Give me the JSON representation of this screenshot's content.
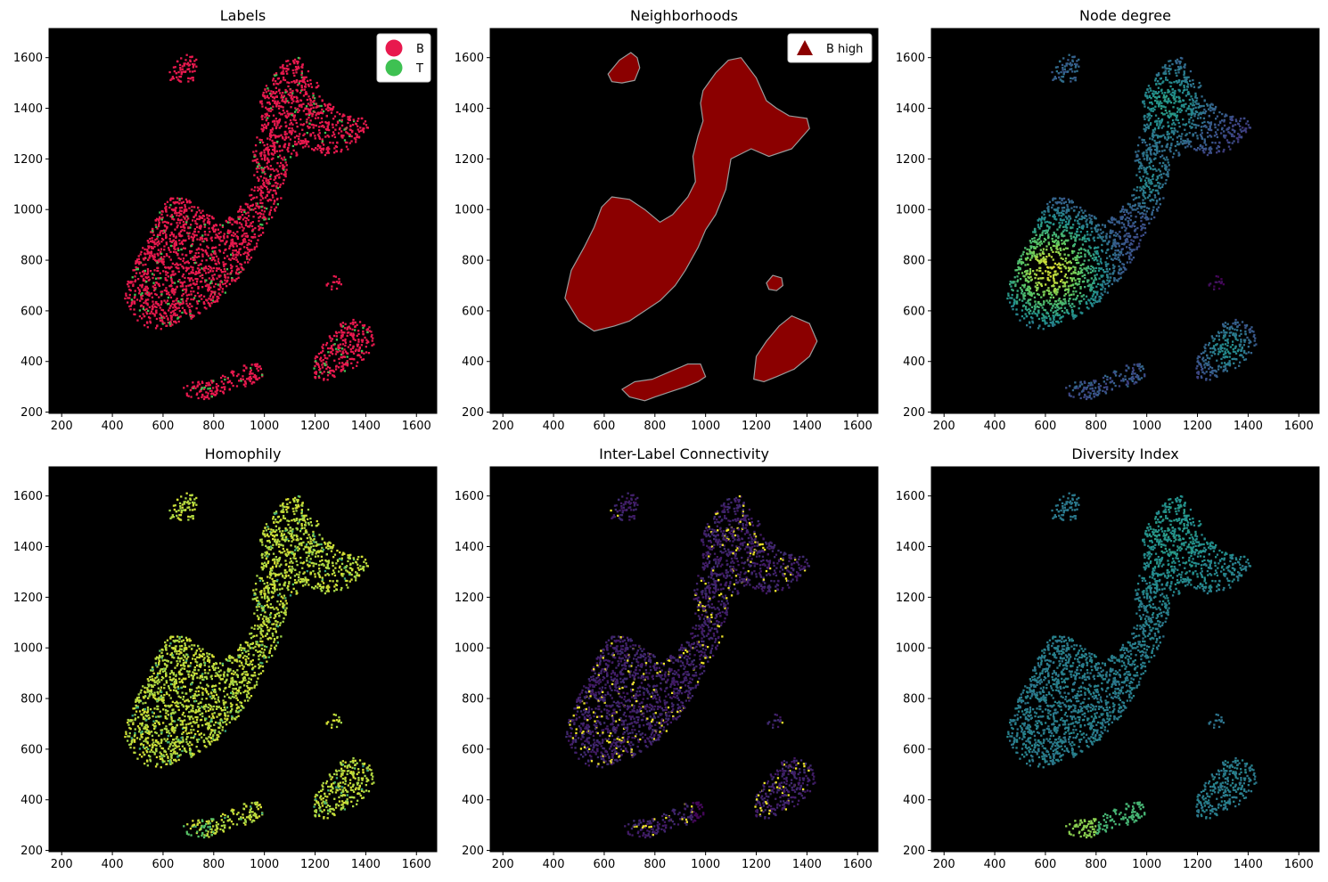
{
  "figure": {
    "panels": [
      {
        "id": "labels",
        "title": "Labels",
        "mode": "labels",
        "legend": [
          {
            "label": "B",
            "color": "#e8194e",
            "marker": "circle"
          },
          {
            "label": "T",
            "color": "#3ec152",
            "marker": "circle"
          }
        ]
      },
      {
        "id": "neighborhoods",
        "title": "Neighborhoods",
        "mode": "regions",
        "legend": [
          {
            "label": "B high",
            "color": "#8b0000",
            "marker": "triangle"
          }
        ]
      },
      {
        "id": "node_degree",
        "title": "Node degree",
        "mode": "degree",
        "legend": []
      },
      {
        "id": "homophily",
        "title": "Homophily",
        "mode": "homophily",
        "legend": []
      },
      {
        "id": "inter_label",
        "title": "Inter-Label Connectivity",
        "mode": "interlabel",
        "legend": []
      },
      {
        "id": "diversity",
        "title": "Diversity Index",
        "mode": "diversity",
        "legend": []
      }
    ]
  },
  "chart_data": {
    "type": "scatter",
    "background_color": "#000000",
    "xlim": [
      150,
      1680
    ],
    "ylim": [
      195,
      1715
    ],
    "xticks": [
      "200",
      "400",
      "600",
      "800",
      "1000",
      "1200",
      "1400",
      "1600"
    ],
    "yticks": [
      "200",
      "400",
      "600",
      "800",
      "1000",
      "1200",
      "1400",
      "1600"
    ],
    "label_colors": {
      "B": "#e8194e",
      "T": "#3ec152"
    },
    "region_color": "#8b0000",
    "region_edge_color": "#9a9a9a",
    "clusters": [
      {
        "name": "top-left island",
        "polygon": [
          [
            615,
            1535
          ],
          [
            660,
            1590
          ],
          [
            705,
            1620
          ],
          [
            730,
            1600
          ],
          [
            740,
            1560
          ],
          [
            720,
            1510
          ],
          [
            670,
            1500
          ],
          [
            630,
            1505
          ]
        ]
      },
      {
        "name": "main body",
        "polygon": [
          [
            445,
            650
          ],
          [
            500,
            560
          ],
          [
            560,
            520
          ],
          [
            640,
            540
          ],
          [
            700,
            560
          ],
          [
            760,
            600
          ],
          [
            820,
            640
          ],
          [
            880,
            700
          ],
          [
            920,
            760
          ],
          [
            970,
            850
          ],
          [
            1000,
            920
          ],
          [
            1040,
            980
          ],
          [
            1080,
            1080
          ],
          [
            1100,
            1200
          ],
          [
            1180,
            1240
          ],
          [
            1250,
            1210
          ],
          [
            1340,
            1240
          ],
          [
            1410,
            1320
          ],
          [
            1400,
            1360
          ],
          [
            1330,
            1370
          ],
          [
            1280,
            1400
          ],
          [
            1240,
            1430
          ],
          [
            1200,
            1520
          ],
          [
            1140,
            1600
          ],
          [
            1090,
            1590
          ],
          [
            1040,
            1540
          ],
          [
            990,
            1470
          ],
          [
            980,
            1420
          ],
          [
            990,
            1350
          ],
          [
            970,
            1290
          ],
          [
            950,
            1210
          ],
          [
            960,
            1110
          ],
          [
            930,
            1050
          ],
          [
            870,
            980
          ],
          [
            820,
            950
          ],
          [
            760,
            1000
          ],
          [
            700,
            1040
          ],
          [
            630,
            1050
          ],
          [
            590,
            1010
          ],
          [
            560,
            930
          ],
          [
            520,
            850
          ],
          [
            470,
            760
          ]
        ]
      },
      {
        "name": "small blob",
        "polygon": [
          [
            1240,
            710
          ],
          [
            1265,
            740
          ],
          [
            1300,
            730
          ],
          [
            1305,
            700
          ],
          [
            1280,
            680
          ],
          [
            1250,
            685
          ]
        ]
      },
      {
        "name": "lower-right blob",
        "polygon": [
          [
            1190,
            330
          ],
          [
            1200,
            420
          ],
          [
            1240,
            480
          ],
          [
            1290,
            540
          ],
          [
            1340,
            580
          ],
          [
            1410,
            550
          ],
          [
            1440,
            480
          ],
          [
            1410,
            420
          ],
          [
            1350,
            370
          ],
          [
            1280,
            340
          ],
          [
            1230,
            320
          ]
        ]
      },
      {
        "name": "bottom strip",
        "polygon": [
          [
            670,
            290
          ],
          [
            720,
            320
          ],
          [
            790,
            330
          ],
          [
            860,
            360
          ],
          [
            930,
            390
          ],
          [
            980,
            390
          ],
          [
            1000,
            340
          ],
          [
            970,
            320
          ],
          [
            920,
            300
          ],
          [
            860,
            280
          ],
          [
            800,
            260
          ],
          [
            760,
            245
          ],
          [
            700,
            260
          ]
        ]
      }
    ]
  }
}
